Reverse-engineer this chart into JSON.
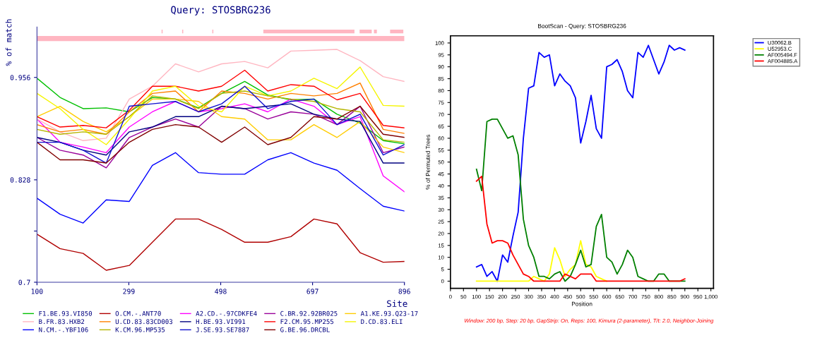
{
  "chart_data": [
    {
      "type": "line",
      "title": "Query: STOSBRG236",
      "ylabel": "% of match",
      "xlabel": "Site",
      "x": [
        100,
        150,
        200,
        250,
        300,
        350,
        400,
        450,
        500,
        550,
        600,
        650,
        700,
        750,
        800,
        850,
        896
      ],
      "xlim": [
        100,
        896
      ],
      "ylim": [
        0.7,
        1.019
      ],
      "xticks": [
        100,
        299,
        498,
        697,
        896
      ],
      "yticks": [
        0.7,
        {
          "value": 0.764,
          "label": null
        },
        0.828,
        0.956
      ],
      "legend": "bottom",
      "series": [
        {
          "name": "F1.BE.93.VI850",
          "color": "#00c000",
          "values": [
            0.955,
            0.931,
            0.917,
            0.918,
            0.913,
            0.931,
            0.929,
            0.918,
            0.936,
            0.951,
            0.934,
            0.928,
            0.929,
            0.91,
            0.899,
            0.877,
            0.873
          ]
        },
        {
          "name": "O.CM.-.ANT70",
          "color": "#b00000",
          "values": [
            0.76,
            0.742,
            0.736,
            0.715,
            0.721,
            0.75,
            0.779,
            0.779,
            0.766,
            0.75,
            0.75,
            0.757,
            0.779,
            0.773,
            0.737,
            0.725,
            0.726
          ]
        },
        {
          "name": "A2.CD.-.97CDKFE4",
          "color": "#ff00ff",
          "values": [
            0.904,
            0.875,
            0.869,
            0.862,
            0.894,
            0.913,
            0.926,
            0.913,
            0.917,
            0.923,
            0.913,
            0.929,
            0.92,
            0.897,
            0.907,
            0.833,
            0.813
          ]
        },
        {
          "name": "C.BR.92.92BR025",
          "color": "#990099",
          "values": [
            0.881,
            0.865,
            0.859,
            0.843,
            0.881,
            0.894,
            0.904,
            0.894,
            0.92,
            0.917,
            0.904,
            0.913,
            0.91,
            0.897,
            0.92,
            0.862,
            0.869
          ]
        },
        {
          "name": "A1.KE.93.Q23-17",
          "color": "#ffcc00",
          "values": [
            0.907,
            0.92,
            0.901,
            0.888,
            0.907,
            0.929,
            0.929,
            0.926,
            0.907,
            0.904,
            0.878,
            0.878,
            0.897,
            0.881,
            0.901,
            0.869,
            0.862
          ]
        },
        {
          "name": "B.FR.83.HXB2",
          "color": "#ffb6c1",
          "values": [
            0.904,
            0.888,
            0.877,
            0.88,
            0.929,
            0.945,
            0.973,
            0.963,
            0.973,
            0.976,
            0.968,
            0.989,
            0.99,
            0.991,
            0.977,
            0.957,
            0.951
          ]
        },
        {
          "name": "U.CD.83.83CD003",
          "color": "#ff8000",
          "values": [
            0.897,
            0.888,
            0.891,
            0.885,
            0.913,
            0.936,
            0.939,
            0.913,
            0.939,
            0.936,
            0.929,
            0.936,
            0.933,
            0.936,
            0.949,
            0.891,
            0.886
          ]
        },
        {
          "name": "H.BE.93.VI991",
          "color": "#000080",
          "values": [
            0.881,
            0.875,
            0.865,
            0.859,
            0.888,
            0.894,
            0.907,
            0.907,
            0.92,
            0.917,
            0.92,
            0.923,
            0.91,
            0.904,
            0.901,
            0.849,
            0.849
          ]
        },
        {
          "name": "F2.CM.95.MP255",
          "color": "#ff0000",
          "values": [
            0.907,
            0.894,
            0.896,
            0.893,
            0.915,
            0.945,
            0.945,
            0.939,
            0.945,
            0.965,
            0.939,
            0.947,
            0.945,
            0.928,
            0.936,
            0.896,
            0.893
          ]
        },
        {
          "name": "D.CD.83.ELI",
          "color": "#f5f500",
          "values": [
            0.936,
            0.917,
            0.891,
            0.872,
            0.904,
            0.939,
            0.945,
            0.92,
            0.913,
            0.945,
            0.933,
            0.939,
            0.955,
            0.942,
            0.969,
            0.921,
            0.92
          ]
        },
        {
          "name": "N.CM.-.YBF106",
          "color": "#0000ff",
          "values": [
            0.805,
            0.785,
            0.774,
            0.803,
            0.801,
            0.846,
            0.862,
            0.837,
            0.835,
            0.835,
            0.853,
            0.862,
            0.849,
            0.84,
            0.817,
            0.795,
            0.789
          ]
        },
        {
          "name": "K.CM.96.MP535",
          "color": "#b5b500",
          "values": [
            0.891,
            0.885,
            0.888,
            0.885,
            0.907,
            0.933,
            0.929,
            0.917,
            0.936,
            0.939,
            0.933,
            0.929,
            0.926,
            0.917,
            0.913,
            0.878,
            0.875
          ]
        },
        {
          "name": "J.SE.93.SE7887",
          "color": "#1010d0",
          "values": [
            0.875,
            0.875,
            0.865,
            0.849,
            0.92,
            0.923,
            0.926,
            0.913,
            0.923,
            0.945,
            0.917,
            0.926,
            0.929,
            0.897,
            0.91,
            0.859,
            0.872
          ]
        },
        {
          "name": "G.BE.96.DRCBL",
          "color": "#800000",
          "values": [
            0.875,
            0.853,
            0.853,
            0.849,
            0.875,
            0.891,
            0.897,
            0.894,
            0.875,
            0.894,
            0.872,
            0.881,
            0.907,
            0.904,
            0.92,
            0.885,
            0.881
          ]
        }
      ]
    },
    {
      "type": "line",
      "title": "BootScan - Query: STOSBRG236",
      "xlabel": "Position",
      "ylabel": "% of Permuted Trees",
      "annotations": [
        "Window: 200 bp, Step: 20 bp, GapStrip: On, Reps: 100, Kimura (2-parameter), T/t: 2.0, Neighbor-Joining"
      ],
      "x": [
        100,
        120,
        140,
        160,
        180,
        200,
        220,
        240,
        260,
        280,
        300,
        320,
        340,
        360,
        380,
        400,
        420,
        440,
        460,
        480,
        500,
        520,
        540,
        560,
        580,
        600,
        620,
        640,
        660,
        680,
        700,
        720,
        740,
        760,
        780,
        800,
        820,
        840,
        860,
        880,
        900
      ],
      "xlim": [
        0,
        1010
      ],
      "ylim": [
        -3,
        103
      ],
      "xticks": [
        0,
        50,
        100,
        150,
        200,
        250,
        300,
        350,
        400,
        450,
        500,
        550,
        600,
        650,
        700,
        750,
        800,
        850,
        900,
        950,
        {
          "value": 1000,
          "label": "1,000"
        }
      ],
      "yticks": [
        0,
        5,
        10,
        15,
        20,
        25,
        30,
        35,
        40,
        45,
        50,
        55,
        60,
        65,
        70,
        75,
        80,
        85,
        90,
        95,
        100
      ],
      "legend": "top right",
      "series": [
        {
          "name": "U30062.B",
          "color": "#0000ff",
          "values": [
            6,
            7,
            2,
            4,
            0,
            11,
            8,
            19,
            29,
            60,
            81,
            82,
            96,
            94,
            95,
            82,
            87,
            84,
            82,
            77,
            58,
            67,
            78,
            64,
            60,
            90,
            91,
            93,
            88,
            80,
            77,
            96,
            94,
            99,
            93,
            87,
            92,
            99,
            97,
            98,
            97
          ]
        },
        {
          "name": "U52953.C",
          "color": "#ffff00",
          "values": [
            0,
            0,
            0,
            0,
            0,
            0,
            0,
            0,
            0,
            0,
            0,
            2,
            1,
            0,
            3,
            14,
            9,
            2,
            5,
            7,
            17,
            7,
            6,
            2,
            1,
            0,
            null,
            null,
            null,
            null,
            null,
            null,
            null,
            null,
            null,
            null,
            null,
            null,
            null,
            null,
            null
          ]
        },
        {
          "name": "AF005494.F",
          "color": "#008000",
          "values": [
            47,
            38,
            67,
            68,
            68,
            64,
            60,
            61,
            53,
            26,
            15,
            10,
            2,
            2,
            1,
            3,
            4,
            0,
            2,
            7,
            13,
            6,
            7,
            23,
            28,
            10,
            8,
            3,
            7,
            13,
            10,
            2,
            1,
            0,
            0,
            3,
            3,
            0,
            0,
            0,
            0
          ]
        },
        {
          "name": "AF004885.A",
          "color": "#ff0000",
          "values": [
            42,
            44,
            24,
            16,
            17,
            17,
            16,
            11,
            7,
            3,
            2,
            0,
            0,
            0,
            0,
            0,
            0,
            3,
            2,
            1,
            3,
            3,
            3,
            0,
            0,
            0,
            0,
            0,
            0,
            0,
            0,
            0,
            0,
            0,
            0,
            0,
            0,
            0,
            0,
            0,
            1
          ]
        }
      ]
    }
  ]
}
